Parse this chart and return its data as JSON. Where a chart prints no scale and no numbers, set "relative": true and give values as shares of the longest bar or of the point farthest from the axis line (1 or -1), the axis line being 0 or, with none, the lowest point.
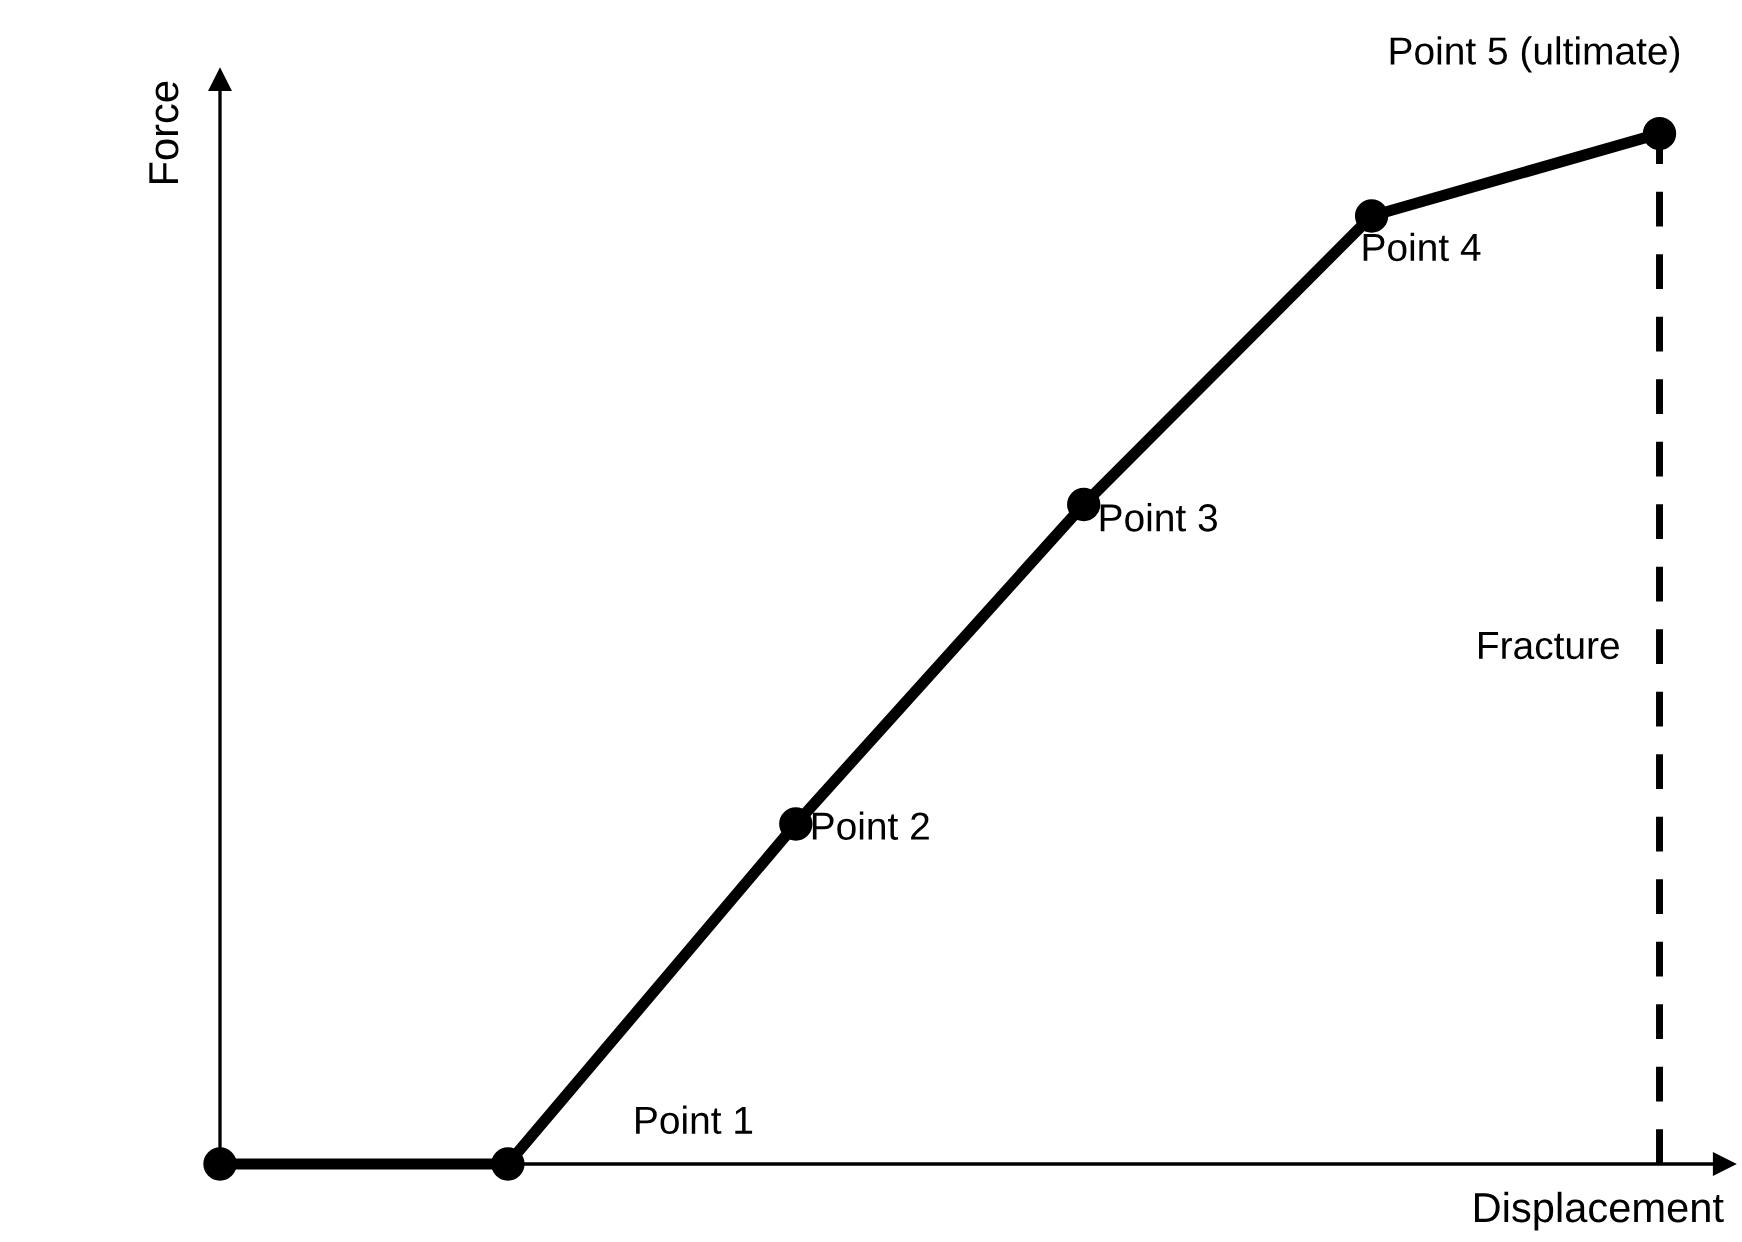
{
  "chart_data": {
    "type": "line",
    "relative": true,
    "xlabel": "Displacement",
    "ylabel": "Force",
    "legend": false,
    "marker": "circle",
    "line_style": "solid",
    "categories": [
      null,
      null,
      null,
      null,
      null,
      null
    ],
    "series": [
      {
        "color": "#000000",
        "values": [
          0,
          0,
          0.33,
          0.64,
          0.92,
          1.0
        ]
      }
    ],
    "annotations": [
      "Point 1",
      "Point 2",
      "Point 3",
      "Point 4",
      "Point 5 (ultimate)",
      "Fracture"
    ]
  }
}
